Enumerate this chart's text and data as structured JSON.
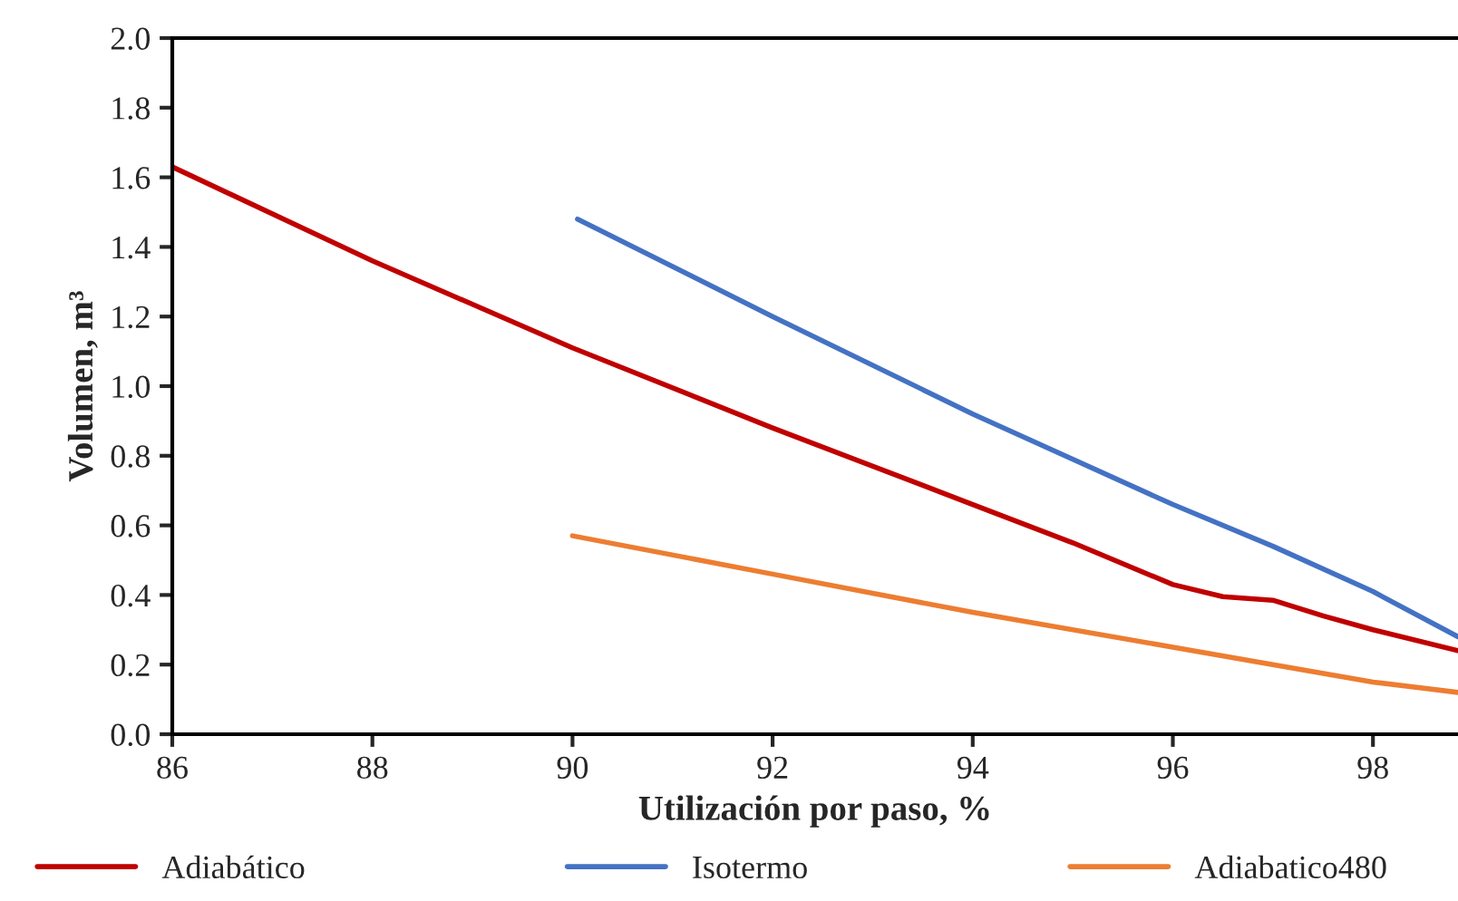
{
  "chart_data": {
    "type": "line",
    "xlabel": "Utilización por paso, %",
    "ylabel": "Volumen, m³",
    "xlim": [
      86,
      98.85
    ],
    "xticks": [
      86,
      88,
      90,
      92,
      94,
      96,
      98
    ],
    "ylim": [
      0,
      2.0
    ],
    "yticks": [
      {
        "value": 0,
        "label": "0.0"
      },
      {
        "value": 0.2,
        "label": "0.2"
      },
      {
        "value": 0.4,
        "label": "0.4"
      },
      {
        "value": 0.6,
        "label": "0.6"
      },
      {
        "value": 0.8,
        "label": "0.8"
      },
      {
        "value": 1.0,
        "label": "1.0"
      },
      {
        "value": 1.2,
        "label": "1.2"
      },
      {
        "value": 1.4,
        "label": "1.4"
      },
      {
        "value": 1.6,
        "label": "1.6"
      },
      {
        "value": 1.8,
        "label": "1.8"
      },
      {
        "value": 2.0,
        "label": "2.0"
      }
    ],
    "grid": false,
    "legend": "bottom",
    "marker": "none",
    "line_style": "solid",
    "series": [
      {
        "name": "Adiabático",
        "color": "#c00000",
        "x": [
          86,
          88,
          90,
          92,
          94,
          95,
          96,
          96.5,
          97,
          97.5,
          98,
          98.85
        ],
        "values": [
          1.63,
          1.36,
          1.11,
          0.88,
          0.66,
          0.55,
          0.43,
          0.395,
          0.385,
          0.34,
          0.3,
          0.24
        ]
      },
      {
        "name": "Isotermo",
        "color": "#4472c4",
        "x": [
          90.05,
          92,
          94,
          96,
          97,
          98,
          98.85
        ],
        "values": [
          1.48,
          1.2,
          0.92,
          0.66,
          0.54,
          0.41,
          0.28
        ]
      },
      {
        "name": "Adiabatico480",
        "color": "#ed7d31",
        "x": [
          90,
          92,
          94,
          96,
          98,
          98.85
        ],
        "values": [
          0.57,
          0.46,
          0.35,
          0.25,
          0.15,
          0.12
        ]
      }
    ]
  }
}
